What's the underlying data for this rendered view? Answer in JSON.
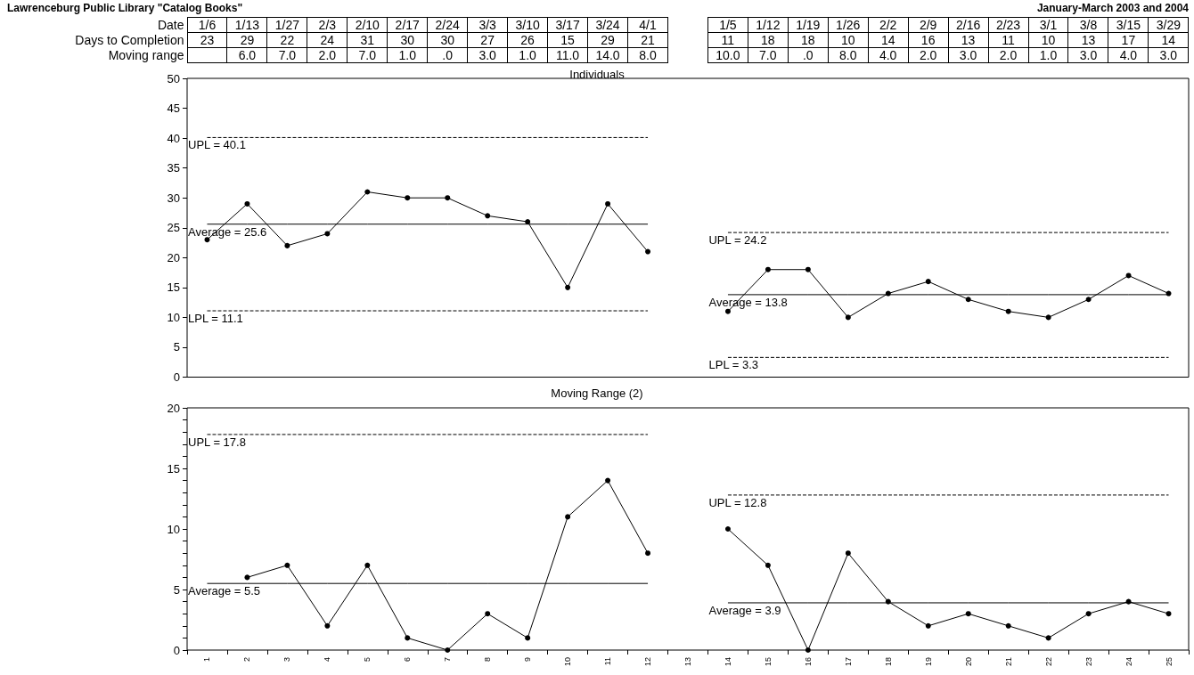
{
  "chart_data": [
    {
      "type": "line",
      "title": "Individuals",
      "xlabel": "Date",
      "categories": [
        "1/6",
        "1/13",
        "1/27",
        "2/3",
        "2/10",
        "2/17",
        "2/24",
        "3/3",
        "3/10",
        "3/17",
        "3/24",
        "4/1",
        null,
        "1/5",
        "1/12",
        "1/19",
        "1/26",
        "2/2",
        "2/9",
        "2/16",
        "2/23",
        "3/1",
        "3/8",
        "3/15",
        "3/29"
      ],
      "series": [
        {
          "name": "Days to Completion",
          "color": "#000000",
          "values": [
            23,
            29,
            22,
            24,
            31,
            30,
            30,
            27,
            26,
            15,
            29,
            21,
            null,
            11,
            18,
            18,
            10,
            14,
            16,
            13,
            11,
            10,
            13,
            17,
            14
          ],
          "value_labels": [
            "23",
            "29",
            "22",
            "24",
            "31",
            "30",
            "30",
            "27",
            "26",
            "15",
            "29",
            "21",
            null,
            "11",
            "18",
            "18",
            "10",
            "14",
            "16",
            "13",
            "11",
            "10",
            "13",
            "17",
            "14"
          ]
        },
        {
          "type": "line",
          "color": "#000000",
          "line_style": "dashed",
          "marker": "none",
          "values": [
            40.1,
            40.1,
            40.1,
            40.1,
            40.1,
            40.1,
            40.1,
            40.1,
            40.1,
            40.1,
            40.1,
            40.1,
            null,
            null,
            null,
            null,
            null,
            null,
            null,
            null,
            null,
            null,
            null,
            null,
            null
          ]
        },
        {
          "type": "line",
          "color": "#000000",
          "line_style": "solid",
          "marker": "none",
          "values": [
            25.6,
            25.6,
            25.6,
            25.6,
            25.6,
            25.6,
            25.6,
            25.6,
            25.6,
            25.6,
            25.6,
            25.6,
            null,
            null,
            null,
            null,
            null,
            null,
            null,
            null,
            null,
            null,
            null,
            null,
            null
          ]
        },
        {
          "type": "line",
          "color": "#000000",
          "line_style": "dashed",
          "marker": "none",
          "values": [
            11.1,
            11.1,
            11.1,
            11.1,
            11.1,
            11.1,
            11.1,
            11.1,
            11.1,
            11.1,
            11.1,
            11.1,
            null,
            null,
            null,
            null,
            null,
            null,
            null,
            null,
            null,
            null,
            null,
            null,
            null
          ]
        },
        {
          "type": "line",
          "color": "#000000",
          "line_style": "dashed",
          "marker": "none",
          "values": [
            null,
            null,
            null,
            null,
            null,
            null,
            null,
            null,
            null,
            null,
            null,
            null,
            null,
            24.2,
            24.2,
            24.2,
            24.2,
            24.2,
            24.2,
            24.2,
            24.2,
            24.2,
            24.2,
            24.2,
            24.2
          ]
        },
        {
          "type": "line",
          "color": "#000000",
          "line_style": "solid",
          "marker": "none",
          "values": [
            null,
            null,
            null,
            null,
            null,
            null,
            null,
            null,
            null,
            null,
            null,
            null,
            null,
            13.8,
            13.8,
            13.8,
            13.8,
            13.8,
            13.8,
            13.8,
            13.8,
            13.8,
            13.8,
            13.8,
            13.8
          ]
        },
        {
          "type": "line",
          "color": "#000000",
          "line_style": "dashed",
          "marker": "none",
          "values": [
            null,
            null,
            null,
            null,
            null,
            null,
            null,
            null,
            null,
            null,
            null,
            null,
            null,
            3.3,
            3.3,
            3.3,
            3.3,
            3.3,
            3.3,
            3.3,
            3.3,
            3.3,
            3.3,
            3.3,
            3.3
          ]
        }
      ],
      "annotations": [
        "Lawrenceburg Public Library \"Catalog Books\"",
        "January-March 2003 and 2004",
        {
          "text": "UPL = 40.1",
          "x": "1/6",
          "y": 40.1
        },
        {
          "text": "Average = 25.6",
          "x": "1/6",
          "y": 25.6
        },
        {
          "text": "LPL = 11.1",
          "x": "1/6",
          "y": 11.1
        },
        {
          "text": "UPL = 24.2",
          "x": "1/5",
          "y": 24.2
        },
        {
          "text": "Average = 13.8",
          "x": "1/5",
          "y": 13.8
        },
        {
          "text": "LPL = 3.3",
          "x": "1/5",
          "y": 3.3
        }
      ],
      "ylim": [
        0,
        50
      ],
      "yticks": [
        0,
        5,
        10,
        15,
        20,
        25,
        30,
        35,
        40,
        45,
        50
      ],
      "grid": false,
      "legend": "top left",
      "marker": "circle",
      "line_style": "solid",
      "tick_labels": "y"
    },
    {
      "type": "line",
      "title": "Moving Range (2)",
      "categories": [
        "1",
        "2",
        "3",
        "4",
        "5",
        "6",
        "7",
        "8",
        "9",
        "10",
        "11",
        "12",
        "13",
        "14",
        "15",
        "16",
        "17",
        "18",
        "19",
        "20",
        "21",
        "22",
        "23",
        "24",
        "25"
      ],
      "series": [
        {
          "name": "Moving range",
          "color": "#000000",
          "values": [
            null,
            6,
            7,
            2,
            7,
            1,
            0,
            3,
            1,
            11,
            14,
            8,
            null,
            10,
            7,
            0,
            8,
            4,
            2,
            3,
            2,
            1,
            3,
            4,
            3
          ],
          "value_labels": [
            null,
            "6.0",
            "7.0",
            "2.0",
            "7.0",
            "1.0",
            ".0",
            "3.0",
            "1.0",
            "11.0",
            "14.0",
            "8.0",
            null,
            "10.0",
            "7.0",
            ".0",
            "8.0",
            "4.0",
            "2.0",
            "3.0",
            "2.0",
            "1.0",
            "3.0",
            "4.0",
            "3.0"
          ]
        },
        {
          "type": "line",
          "color": "#000000",
          "line_style": "dashed",
          "marker": "none",
          "values": [
            17.8,
            17.8,
            17.8,
            17.8,
            17.8,
            17.8,
            17.8,
            17.8,
            17.8,
            17.8,
            17.8,
            17.8,
            null,
            null,
            null,
            null,
            null,
            null,
            null,
            null,
            null,
            null,
            null,
            null,
            null
          ]
        },
        {
          "type": "line",
          "color": "#000000",
          "line_style": "solid",
          "marker": "none",
          "values": [
            5.5,
            5.5,
            5.5,
            5.5,
            5.5,
            5.5,
            5.5,
            5.5,
            5.5,
            5.5,
            5.5,
            5.5,
            null,
            null,
            null,
            null,
            null,
            null,
            null,
            null,
            null,
            null,
            null,
            null,
            null
          ]
        },
        {
          "type": "line",
          "color": "#000000",
          "line_style": "dashed",
          "marker": "none",
          "values": [
            null,
            null,
            null,
            null,
            null,
            null,
            null,
            null,
            null,
            null,
            null,
            null,
            null,
            12.8,
            12.8,
            12.8,
            12.8,
            12.8,
            12.8,
            12.8,
            12.8,
            12.8,
            12.8,
            12.8,
            12.8
          ]
        },
        {
          "type": "line",
          "color": "#000000",
          "line_style": "solid",
          "marker": "none",
          "values": [
            null,
            null,
            null,
            null,
            null,
            null,
            null,
            null,
            null,
            null,
            null,
            null,
            null,
            3.9,
            3.9,
            3.9,
            3.9,
            3.9,
            3.9,
            3.9,
            3.9,
            3.9,
            3.9,
            3.9,
            3.9
          ]
        }
      ],
      "annotations": [
        {
          "text": "UPL = 17.8",
          "x": "1",
          "y": 17.8
        },
        {
          "text": "Average = 5.5",
          "x": "1",
          "y": 5.5
        },
        {
          "text": "UPL = 12.8",
          "x": "14",
          "y": 12.8
        },
        {
          "text": "Average = 3.9",
          "x": "14",
          "y": 3.9
        }
      ],
      "ylim": [
        0,
        20
      ],
      "yticks": [
        0,
        {
          "value": 1,
          "label": null
        },
        {
          "value": 2,
          "label": null
        },
        {
          "value": 3,
          "label": null
        },
        {
          "value": 4,
          "label": null
        },
        5,
        {
          "value": 6,
          "label": null
        },
        {
          "value": 7,
          "label": null
        },
        {
          "value": 8,
          "label": null
        },
        {
          "value": 9,
          "label": null
        },
        10,
        {
          "value": 11,
          "label": null
        },
        {
          "value": 12,
          "label": null
        },
        {
          "value": 13,
          "label": null
        },
        {
          "value": 14,
          "label": null
        },
        15,
        {
          "value": 16,
          "label": null
        },
        {
          "value": 17,
          "label": null
        },
        {
          "value": 18,
          "label": null
        },
        {
          "value": 19,
          "label": null
        },
        20
      ],
      "grid": false,
      "legend": "top left",
      "marker": "circle",
      "line_style": "solid"
    }
  ]
}
